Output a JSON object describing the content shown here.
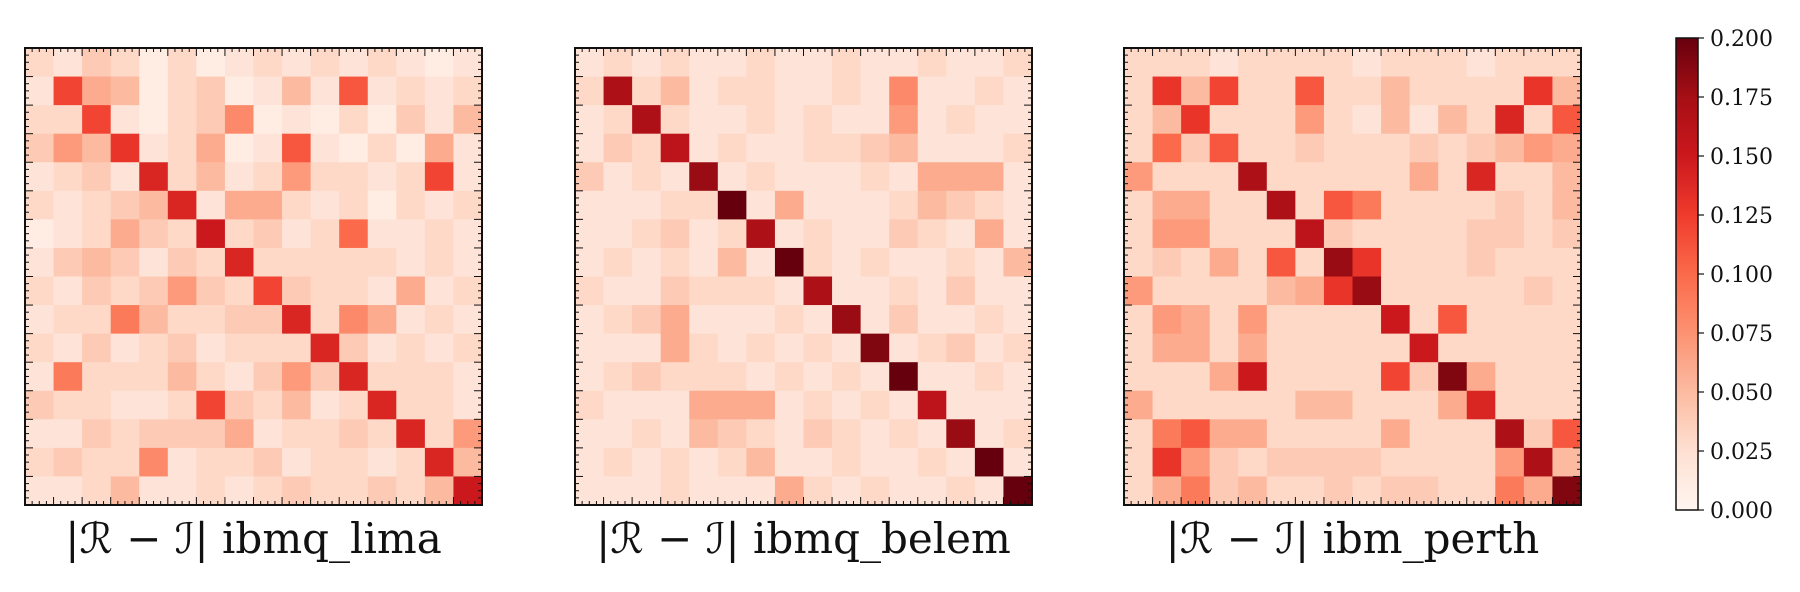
{
  "chart_data": {
    "type": "heatmap",
    "colormap": "Reds",
    "colorbar": {
      "min": 0.0,
      "max": 0.2,
      "ticks": [
        "0.000",
        "0.025",
        "0.050",
        "0.075",
        "0.100",
        "0.125",
        "0.150",
        "0.175",
        "0.200"
      ],
      "placement": "right"
    },
    "panels": [
      {
        "label": "|ℛ − ℐ| ibmq_lima",
        "values": [
          [
            0.03,
            0.02,
            0.04,
            0.03,
            0.01,
            0.03,
            0.01,
            0.02,
            0.03,
            0.02,
            0.03,
            0.02,
            0.03,
            0.02,
            0.01,
            0.02
          ],
          [
            0.02,
            0.12,
            0.06,
            0.05,
            0.01,
            0.03,
            0.04,
            0.01,
            0.02,
            0.05,
            0.02,
            0.11,
            0.02,
            0.03,
            0.02,
            0.03
          ],
          [
            0.03,
            0.03,
            0.12,
            0.02,
            0.01,
            0.03,
            0.04,
            0.08,
            0.01,
            0.02,
            0.01,
            0.03,
            0.01,
            0.04,
            0.02,
            0.05
          ],
          [
            0.04,
            0.07,
            0.05,
            0.13,
            0.02,
            0.03,
            0.06,
            0.01,
            0.02,
            0.11,
            0.02,
            0.01,
            0.03,
            0.01,
            0.06,
            0.02
          ],
          [
            0.02,
            0.03,
            0.04,
            0.02,
            0.14,
            0.03,
            0.05,
            0.02,
            0.03,
            0.07,
            0.03,
            0.03,
            0.02,
            0.03,
            0.12,
            0.02
          ],
          [
            0.03,
            0.02,
            0.03,
            0.04,
            0.05,
            0.14,
            0.02,
            0.06,
            0.06,
            0.03,
            0.02,
            0.03,
            0.01,
            0.03,
            0.02,
            0.03
          ],
          [
            0.01,
            0.02,
            0.03,
            0.06,
            0.04,
            0.03,
            0.15,
            0.03,
            0.04,
            0.02,
            0.03,
            0.1,
            0.02,
            0.02,
            0.03,
            0.02
          ],
          [
            0.02,
            0.04,
            0.05,
            0.04,
            0.02,
            0.04,
            0.03,
            0.14,
            0.03,
            0.03,
            0.03,
            0.03,
            0.03,
            0.02,
            0.03,
            0.02
          ],
          [
            0.03,
            0.02,
            0.04,
            0.03,
            0.04,
            0.07,
            0.04,
            0.03,
            0.12,
            0.04,
            0.03,
            0.03,
            0.02,
            0.06,
            0.02,
            0.03
          ],
          [
            0.02,
            0.03,
            0.03,
            0.09,
            0.05,
            0.03,
            0.03,
            0.04,
            0.04,
            0.14,
            0.03,
            0.08,
            0.06,
            0.02,
            0.03,
            0.02
          ],
          [
            0.03,
            0.02,
            0.04,
            0.02,
            0.03,
            0.04,
            0.02,
            0.03,
            0.03,
            0.03,
            0.14,
            0.04,
            0.02,
            0.03,
            0.02,
            0.03
          ],
          [
            0.02,
            0.09,
            0.03,
            0.03,
            0.03,
            0.05,
            0.03,
            0.02,
            0.04,
            0.07,
            0.04,
            0.14,
            0.03,
            0.03,
            0.03,
            0.02
          ],
          [
            0.04,
            0.03,
            0.03,
            0.02,
            0.02,
            0.03,
            0.12,
            0.04,
            0.03,
            0.05,
            0.02,
            0.03,
            0.14,
            0.03,
            0.03,
            0.02
          ],
          [
            0.02,
            0.02,
            0.04,
            0.03,
            0.04,
            0.04,
            0.04,
            0.06,
            0.02,
            0.03,
            0.03,
            0.04,
            0.03,
            0.14,
            0.03,
            0.07
          ],
          [
            0.03,
            0.04,
            0.03,
            0.03,
            0.08,
            0.02,
            0.03,
            0.03,
            0.04,
            0.02,
            0.03,
            0.03,
            0.02,
            0.03,
            0.14,
            0.05
          ],
          [
            0.02,
            0.02,
            0.03,
            0.05,
            0.02,
            0.02,
            0.03,
            0.02,
            0.03,
            0.04,
            0.03,
            0.03,
            0.04,
            0.03,
            0.05,
            0.15
          ]
        ]
      },
      {
        "label": "|ℛ − ℐ| ibmq_belem",
        "values": [
          [
            0.02,
            0.03,
            0.02,
            0.03,
            0.02,
            0.02,
            0.03,
            0.02,
            0.02,
            0.03,
            0.02,
            0.02,
            0.03,
            0.02,
            0.02,
            0.03
          ],
          [
            0.03,
            0.17,
            0.03,
            0.05,
            0.02,
            0.03,
            0.03,
            0.02,
            0.02,
            0.03,
            0.02,
            0.08,
            0.02,
            0.02,
            0.03,
            0.02
          ],
          [
            0.02,
            0.03,
            0.17,
            0.03,
            0.02,
            0.02,
            0.03,
            0.02,
            0.03,
            0.02,
            0.02,
            0.07,
            0.02,
            0.03,
            0.02,
            0.02
          ],
          [
            0.02,
            0.04,
            0.03,
            0.16,
            0.02,
            0.03,
            0.02,
            0.02,
            0.03,
            0.03,
            0.04,
            0.05,
            0.02,
            0.02,
            0.02,
            0.03
          ],
          [
            0.04,
            0.02,
            0.03,
            0.02,
            0.18,
            0.02,
            0.03,
            0.02,
            0.02,
            0.02,
            0.03,
            0.02,
            0.06,
            0.06,
            0.06,
            0.02
          ],
          [
            0.02,
            0.02,
            0.02,
            0.03,
            0.03,
            0.2,
            0.02,
            0.06,
            0.02,
            0.02,
            0.02,
            0.03,
            0.05,
            0.04,
            0.03,
            0.02
          ],
          [
            0.02,
            0.02,
            0.03,
            0.04,
            0.02,
            0.03,
            0.17,
            0.02,
            0.03,
            0.02,
            0.02,
            0.04,
            0.03,
            0.02,
            0.06,
            0.02
          ],
          [
            0.02,
            0.03,
            0.02,
            0.03,
            0.02,
            0.05,
            0.02,
            0.2,
            0.03,
            0.02,
            0.03,
            0.02,
            0.02,
            0.03,
            0.02,
            0.05
          ],
          [
            0.03,
            0.02,
            0.02,
            0.04,
            0.03,
            0.03,
            0.03,
            0.02,
            0.17,
            0.02,
            0.02,
            0.03,
            0.02,
            0.04,
            0.02,
            0.02
          ],
          [
            0.02,
            0.03,
            0.04,
            0.06,
            0.02,
            0.02,
            0.02,
            0.03,
            0.02,
            0.18,
            0.02,
            0.04,
            0.02,
            0.02,
            0.03,
            0.02
          ],
          [
            0.02,
            0.02,
            0.02,
            0.06,
            0.03,
            0.02,
            0.03,
            0.02,
            0.03,
            0.02,
            0.19,
            0.02,
            0.03,
            0.04,
            0.02,
            0.03
          ],
          [
            0.02,
            0.03,
            0.04,
            0.03,
            0.03,
            0.03,
            0.02,
            0.03,
            0.02,
            0.03,
            0.02,
            0.2,
            0.02,
            0.02,
            0.03,
            0.02
          ],
          [
            0.03,
            0.02,
            0.02,
            0.02,
            0.06,
            0.06,
            0.06,
            0.02,
            0.03,
            0.02,
            0.03,
            0.02,
            0.16,
            0.02,
            0.02,
            0.02
          ],
          [
            0.02,
            0.02,
            0.03,
            0.02,
            0.05,
            0.04,
            0.03,
            0.02,
            0.04,
            0.03,
            0.02,
            0.03,
            0.02,
            0.18,
            0.02,
            0.03
          ],
          [
            0.02,
            0.03,
            0.02,
            0.03,
            0.02,
            0.03,
            0.05,
            0.02,
            0.02,
            0.03,
            0.02,
            0.02,
            0.03,
            0.02,
            0.2,
            0.02
          ],
          [
            0.02,
            0.02,
            0.02,
            0.03,
            0.02,
            0.02,
            0.02,
            0.06,
            0.03,
            0.02,
            0.03,
            0.02,
            0.02,
            0.03,
            0.02,
            0.2
          ]
        ]
      },
      {
        "label": "|ℛ − ℐ| ibm_perth",
        "values": [
          [
            0.03,
            0.03,
            0.03,
            0.02,
            0.03,
            0.03,
            0.03,
            0.03,
            0.02,
            0.03,
            0.03,
            0.03,
            0.02,
            0.03,
            0.03,
            0.03
          ],
          [
            0.03,
            0.13,
            0.05,
            0.12,
            0.03,
            0.03,
            0.11,
            0.03,
            0.03,
            0.05,
            0.03,
            0.03,
            0.03,
            0.03,
            0.13,
            0.05
          ],
          [
            0.03,
            0.05,
            0.13,
            0.03,
            0.03,
            0.03,
            0.07,
            0.03,
            0.02,
            0.05,
            0.02,
            0.05,
            0.03,
            0.14,
            0.03,
            0.11
          ],
          [
            0.03,
            0.1,
            0.04,
            0.11,
            0.03,
            0.03,
            0.04,
            0.03,
            0.03,
            0.03,
            0.04,
            0.03,
            0.04,
            0.05,
            0.07,
            0.06
          ],
          [
            0.07,
            0.03,
            0.03,
            0.03,
            0.17,
            0.03,
            0.03,
            0.03,
            0.03,
            0.03,
            0.06,
            0.03,
            0.14,
            0.03,
            0.03,
            0.05
          ],
          [
            0.03,
            0.06,
            0.06,
            0.03,
            0.03,
            0.17,
            0.03,
            0.11,
            0.09,
            0.03,
            0.03,
            0.03,
            0.03,
            0.04,
            0.03,
            0.05
          ],
          [
            0.03,
            0.07,
            0.07,
            0.03,
            0.03,
            0.03,
            0.16,
            0.04,
            0.03,
            0.03,
            0.03,
            0.03,
            0.04,
            0.04,
            0.03,
            0.04
          ],
          [
            0.03,
            0.04,
            0.03,
            0.06,
            0.03,
            0.11,
            0.03,
            0.18,
            0.13,
            0.03,
            0.03,
            0.03,
            0.04,
            0.03,
            0.03,
            0.03
          ],
          [
            0.07,
            0.03,
            0.03,
            0.03,
            0.03,
            0.05,
            0.06,
            0.13,
            0.18,
            0.03,
            0.03,
            0.03,
            0.03,
            0.03,
            0.04,
            0.03
          ],
          [
            0.03,
            0.07,
            0.06,
            0.03,
            0.07,
            0.03,
            0.03,
            0.03,
            0.03,
            0.15,
            0.03,
            0.11,
            0.03,
            0.03,
            0.03,
            0.03
          ],
          [
            0.03,
            0.06,
            0.06,
            0.03,
            0.06,
            0.03,
            0.03,
            0.03,
            0.03,
            0.03,
            0.15,
            0.03,
            0.03,
            0.03,
            0.03,
            0.03
          ],
          [
            0.03,
            0.03,
            0.03,
            0.06,
            0.15,
            0.03,
            0.03,
            0.03,
            0.03,
            0.12,
            0.04,
            0.19,
            0.06,
            0.03,
            0.03,
            0.03
          ],
          [
            0.06,
            0.03,
            0.03,
            0.03,
            0.03,
            0.03,
            0.05,
            0.05,
            0.03,
            0.03,
            0.03,
            0.06,
            0.14,
            0.03,
            0.03,
            0.03
          ],
          [
            0.03,
            0.09,
            0.11,
            0.06,
            0.06,
            0.03,
            0.03,
            0.03,
            0.03,
            0.06,
            0.03,
            0.03,
            0.03,
            0.17,
            0.04,
            0.11
          ],
          [
            0.03,
            0.13,
            0.07,
            0.04,
            0.03,
            0.04,
            0.04,
            0.04,
            0.04,
            0.03,
            0.03,
            0.03,
            0.03,
            0.07,
            0.17,
            0.05
          ],
          [
            0.03,
            0.06,
            0.09,
            0.04,
            0.05,
            0.03,
            0.03,
            0.04,
            0.03,
            0.04,
            0.04,
            0.03,
            0.03,
            0.09,
            0.06,
            0.19
          ]
        ]
      }
    ]
  }
}
